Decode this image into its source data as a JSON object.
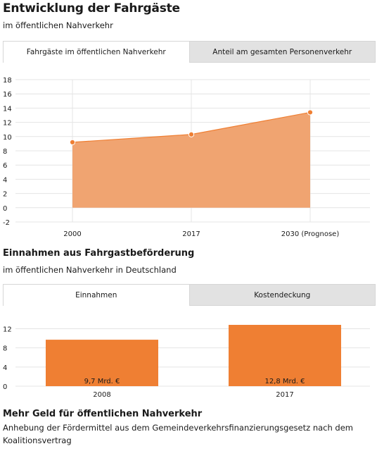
{
  "section1": {
    "title": "Entwicklung der Fahrgäste",
    "subtitle": "im öffentlichen Nahverkehr",
    "tabs": [
      {
        "label": "Fahrgäste im öffentlichen Nahverkehr",
        "active": true
      },
      {
        "label": "Anteil am gesamten Personenverkehr",
        "active": false
      }
    ]
  },
  "section2": {
    "title": "Einnahmen aus Fahrgastbeförderung",
    "subtitle": "im öffentlichen Nahverkehr in Deutschland",
    "tabs": [
      {
        "label": "Einnahmen",
        "active": true
      },
      {
        "label": "Kostendeckung",
        "active": false
      }
    ]
  },
  "section3": {
    "title": "Mehr Geld für öffentlichen Nahverkehr",
    "text": "Anhebung der Fördermittel aus dem Gemeindeverkehrsfinanzierungsgesetz nach dem Koalitionsvertrag"
  },
  "chart_data": [
    {
      "type": "area",
      "categories": [
        "2000",
        "2017",
        "2030 (Prognose)"
      ],
      "values": [
        9.2,
        10.3,
        13.4
      ],
      "ylim": [
        -2,
        18
      ],
      "yticks": [
        -2,
        0,
        2,
        4,
        6,
        8,
        10,
        12,
        14,
        16,
        18
      ],
      "grid": true,
      "color": "#f0a471",
      "line_color": "#ef7f33"
    },
    {
      "type": "bar",
      "categories": [
        "2008",
        "2017"
      ],
      "values": [
        9.7,
        12.8
      ],
      "data_labels": [
        "9,7 Mrd. €",
        "12,8 Mrd. €"
      ],
      "ylim": [
        0,
        12.8
      ],
      "yticks": [
        0,
        4,
        8,
        12
      ],
      "grid": true,
      "color": "#ef7f33"
    }
  ]
}
